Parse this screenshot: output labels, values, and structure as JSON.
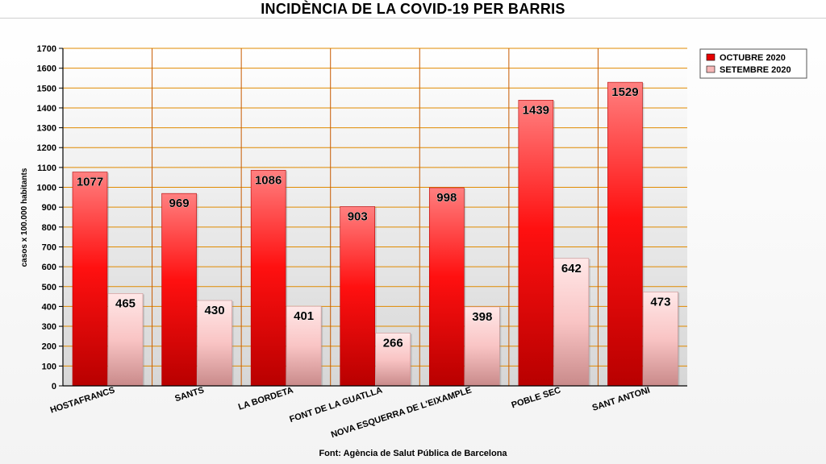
{
  "title": "INCIDÈNCIA DE LA COVID-19 PER BARRIS",
  "source": "Font: Agència de Salut Pública de Barcelona",
  "colors": {
    "octubre": "#e60000",
    "setembre": "#f7b8b8",
    "grid": "#e08a00",
    "plot_bg_top": "#ffffff",
    "plot_bg_bottom": "#d8d8d8"
  },
  "chart_data": {
    "type": "bar",
    "title": "INCIDÈNCIA DE LA COVID-19 PER BARRIS",
    "xlabel": "",
    "ylabel": "casos x 100.000 habitants",
    "ylim": [
      0,
      1700
    ],
    "yticks": [
      0,
      100,
      200,
      300,
      400,
      500,
      600,
      700,
      800,
      900,
      1000,
      1100,
      1200,
      1300,
      1400,
      1500,
      1600,
      1700
    ],
    "grid": true,
    "legend_position": "top-right",
    "categories": [
      "HOSTAFRANCS",
      "SANTS",
      "LA BORDETA",
      "FONT DE LA GUATLLA",
      "NOVA ESQUERRA DE L'EIXAMPLE",
      "POBLE SEC",
      "SANT ANTONI"
    ],
    "series": [
      {
        "name": "OCTUBRE 2020",
        "values": [
          1077,
          969,
          1086,
          903,
          998,
          1439,
          1529
        ]
      },
      {
        "name": "SETEMBRE 2020",
        "values": [
          465,
          430,
          401,
          266,
          398,
          642,
          473
        ]
      }
    ]
  }
}
